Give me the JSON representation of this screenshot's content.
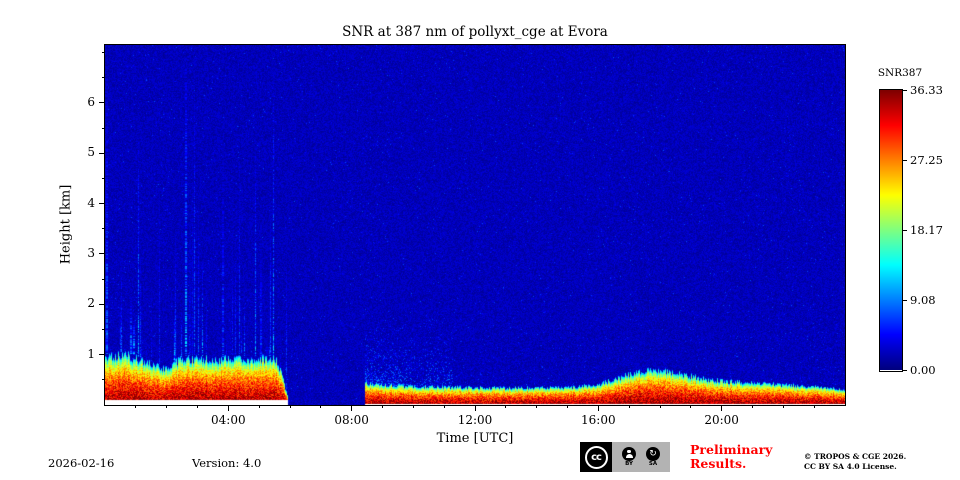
{
  "figure": {
    "date": "2026-02-16",
    "version": "Version: 4.0",
    "preliminary_line1": "Preliminary",
    "preliminary_line2": "Results.",
    "preliminary_color": "#ff0000",
    "copyright_line1": "© TROPOS & CGE 2026.",
    "copyright_line2": "CC BY SA 4.0 License.",
    "cc_badge": {
      "cc": "cc",
      "by": "BY",
      "sa": "SA",
      "sa_icon": "↻"
    }
  },
  "chart_data": {
    "type": "heatmap",
    "title": "SNR at 387 nm of pollyxt_cge at Evora",
    "xlabel": "Time [UTC]",
    "ylabel": "Height [km]",
    "x_range_hours": [
      0,
      24
    ],
    "x_major_tick_hours": [
      4,
      8,
      12,
      16,
      20
    ],
    "x_major_tick_labels": [
      "04:00",
      "08:00",
      "12:00",
      "16:00",
      "20:00"
    ],
    "x_minor_tick_step_hours": 1,
    "y_range_km": [
      0,
      7.15
    ],
    "y_major_ticks_km": [
      1,
      2,
      3,
      4,
      5,
      6
    ],
    "y_minor_tick_step_km": 0.5,
    "colorbar": {
      "label": "SNR387",
      "tick_labels": [
        "36.33",
        "27.25",
        "18.17",
        "9.08",
        "0.00"
      ],
      "vmin": 0,
      "vmax": 36.33,
      "colormap": "jet",
      "position": "right"
    },
    "grid": false,
    "background_snr": 2.3,
    "no_data_hours": [
      5.95,
      8.42
    ],
    "night_hours_end": 5.95,
    "band_snr_max": 36.33,
    "band_profile_power": 0.33,
    "blank_bottom_km_night": 0.1,
    "blank_bottom_km_day": 0.025,
    "band_top_profile_km": [
      [
        0,
        0.97
      ],
      [
        0.7,
        1.02
      ],
      [
        1.2,
        0.88
      ],
      [
        1.6,
        0.8
      ],
      [
        2.0,
        0.72
      ],
      [
        2.4,
        0.9
      ],
      [
        3.0,
        0.95
      ],
      [
        3.6,
        0.9
      ],
      [
        4.2,
        0.95
      ],
      [
        5.0,
        0.92
      ],
      [
        5.55,
        0.95
      ],
      [
        5.75,
        0.6
      ],
      [
        5.95,
        0.12
      ],
      [
        8.42,
        0.45
      ],
      [
        9.5,
        0.4
      ],
      [
        11,
        0.37
      ],
      [
        13,
        0.35
      ],
      [
        15,
        0.36
      ],
      [
        16,
        0.42
      ],
      [
        17,
        0.62
      ],
      [
        17.8,
        0.72
      ],
      [
        18.6,
        0.65
      ],
      [
        19.5,
        0.52
      ],
      [
        20.5,
        0.47
      ],
      [
        21.5,
        0.43
      ],
      [
        22.5,
        0.4
      ],
      [
        23.4,
        0.36
      ],
      [
        24,
        0.3
      ]
    ],
    "streaks": {
      "count": 46,
      "t_min": 0.05,
      "t_max": 5.9,
      "top_min_km": 1.2,
      "top_max_km": 7.1,
      "snr_min": 3,
      "snr_max": 11
    },
    "day_speckle": {
      "t_start": 8.42,
      "t_end": 11.3,
      "top_km": 1.9,
      "snr_min": 3,
      "snr_max": 10
    },
    "seed": 42
  }
}
